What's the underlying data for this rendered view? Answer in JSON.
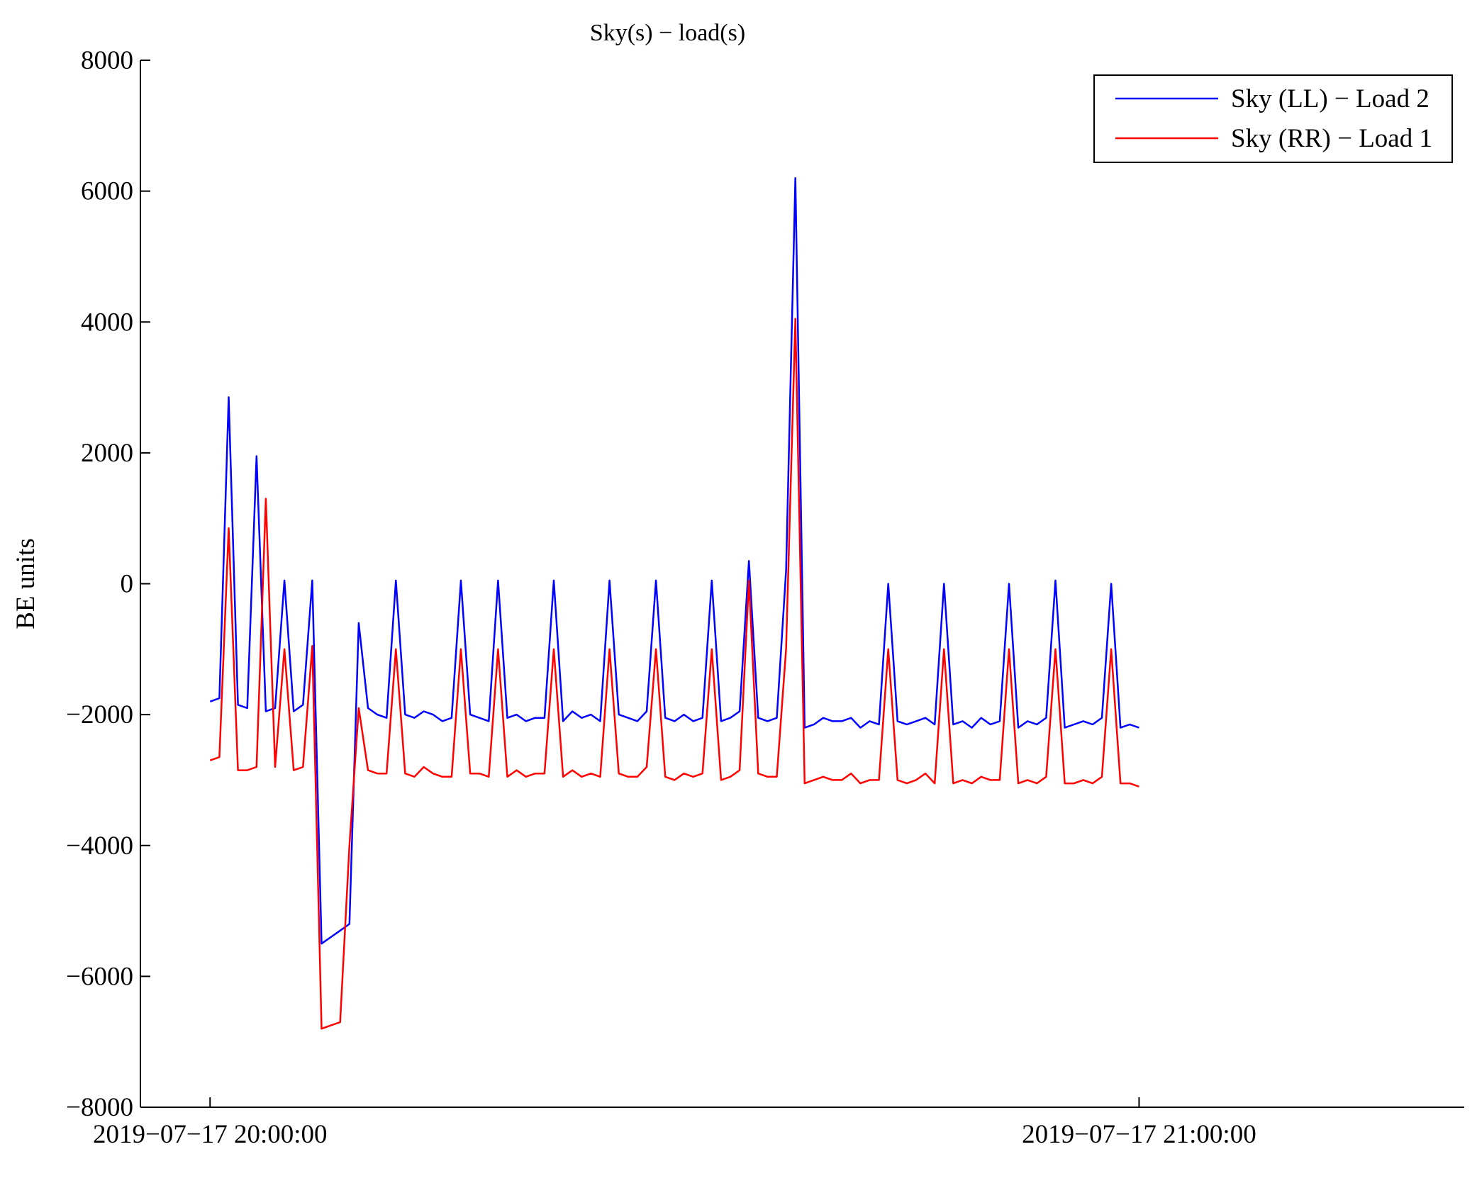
{
  "chart_data": {
    "type": "line",
    "title": "Sky(s) − load(s)",
    "xlabel": "",
    "ylabel": "BE units",
    "ylim": [
      -8000,
      8000
    ],
    "xlim": [
      "2019-07-17 19:55:30",
      "2019-07-17 21:21:00"
    ],
    "yticks": [
      "8000",
      "6000",
      "4000",
      "2000",
      "0",
      "−2000",
      "−4000",
      "−6000",
      "−8000"
    ],
    "yticks_values": [
      8000,
      6000,
      4000,
      2000,
      0,
      -2000,
      -4000,
      -6000,
      -8000
    ],
    "xticks": [
      "2019−07−17 20:00:00",
      "2019−07−17 21:00:00"
    ],
    "xticks_times": [
      "2019-07-17 20:00:00",
      "2019-07-17 21:00:00"
    ],
    "grid": false,
    "legend_position": "top-right",
    "series": [
      {
        "name": "Sky (LL) − Load 2",
        "color": "#0000ff",
        "x": [
          "2019-07-17 20:00:00",
          "2019-07-17 20:00:36",
          "2019-07-17 20:01:12",
          "2019-07-17 20:01:48",
          "2019-07-17 20:02:24",
          "2019-07-17 20:03:00",
          "2019-07-17 20:03:36",
          "2019-07-17 20:04:12",
          "2019-07-17 20:04:48",
          "2019-07-17 20:05:24",
          "2019-07-17 20:06:00",
          "2019-07-17 20:06:36",
          "2019-07-17 20:07:12",
          "2019-07-17 20:07:48",
          "2019-07-17 20:08:24",
          "2019-07-17 20:09:00",
          "2019-07-17 20:09:36",
          "2019-07-17 20:10:12",
          "2019-07-17 20:10:48",
          "2019-07-17 20:11:24",
          "2019-07-17 20:12:00",
          "2019-07-17 20:12:36",
          "2019-07-17 20:13:12",
          "2019-07-17 20:13:48",
          "2019-07-17 20:14:24",
          "2019-07-17 20:15:00",
          "2019-07-17 20:15:36",
          "2019-07-17 20:16:12",
          "2019-07-17 20:16:48",
          "2019-07-17 20:17:24",
          "2019-07-17 20:18:00",
          "2019-07-17 20:18:36",
          "2019-07-17 20:19:12",
          "2019-07-17 20:19:48",
          "2019-07-17 20:20:24",
          "2019-07-17 20:21:00",
          "2019-07-17 20:21:36",
          "2019-07-17 20:22:12",
          "2019-07-17 20:22:48",
          "2019-07-17 20:23:24",
          "2019-07-17 20:24:00",
          "2019-07-17 20:24:36",
          "2019-07-17 20:25:12",
          "2019-07-17 20:25:48",
          "2019-07-17 20:26:24",
          "2019-07-17 20:27:00",
          "2019-07-17 20:27:36",
          "2019-07-17 20:28:12",
          "2019-07-17 20:28:48",
          "2019-07-17 20:29:24",
          "2019-07-17 20:30:00",
          "2019-07-17 20:30:36",
          "2019-07-17 20:31:12",
          "2019-07-17 20:31:48",
          "2019-07-17 20:32:24",
          "2019-07-17 20:33:00",
          "2019-07-17 20:33:36",
          "2019-07-17 20:34:12",
          "2019-07-17 20:34:48",
          "2019-07-17 20:35:24",
          "2019-07-17 20:36:00",
          "2019-07-17 20:36:36",
          "2019-07-17 20:37:12",
          "2019-07-17 20:37:48",
          "2019-07-17 20:38:24",
          "2019-07-17 20:39:00",
          "2019-07-17 20:39:36",
          "2019-07-17 20:40:12",
          "2019-07-17 20:40:48",
          "2019-07-17 20:41:24",
          "2019-07-17 20:42:00",
          "2019-07-17 20:42:36",
          "2019-07-17 20:43:12",
          "2019-07-17 20:43:48",
          "2019-07-17 20:44:24",
          "2019-07-17 20:45:00",
          "2019-07-17 20:45:36",
          "2019-07-17 20:46:12",
          "2019-07-17 20:46:48",
          "2019-07-17 20:47:24",
          "2019-07-17 20:48:00",
          "2019-07-17 20:48:36",
          "2019-07-17 20:49:12",
          "2019-07-17 20:49:48",
          "2019-07-17 20:50:24",
          "2019-07-17 20:51:00",
          "2019-07-17 20:51:36",
          "2019-07-17 20:52:12",
          "2019-07-17 20:52:48",
          "2019-07-17 20:53:24",
          "2019-07-17 20:54:00",
          "2019-07-17 20:54:36",
          "2019-07-17 20:55:12",
          "2019-07-17 20:55:48",
          "2019-07-17 20:56:24",
          "2019-07-17 20:57:00",
          "2019-07-17 20:57:36",
          "2019-07-17 20:58:12",
          "2019-07-17 20:58:48",
          "2019-07-17 20:59:24",
          "2019-07-17 21:00:00"
        ],
        "y": [
          -1800,
          -1750,
          2850,
          -1850,
          -1900,
          1950,
          -1950,
          -1900,
          50,
          -1950,
          -1850,
          50,
          -5500,
          -5400,
          -5300,
          -5200,
          -600,
          -1900,
          -2000,
          -2050,
          50,
          -2000,
          -2050,
          -1950,
          -2000,
          -2100,
          -2050,
          50,
          -2000,
          -2050,
          -2100,
          50,
          -2050,
          -2000,
          -2100,
          -2050,
          -2050,
          50,
          -2100,
          -1950,
          -2050,
          -2000,
          -2100,
          50,
          -2000,
          -2050,
          -2100,
          -1950,
          50,
          -2050,
          -2100,
          -2000,
          -2100,
          -2050,
          50,
          -2100,
          -2050,
          -1950,
          350,
          -2050,
          -2100,
          -2050,
          200,
          6200,
          -2200,
          -2150,
          -2050,
          -2100,
          -2100,
          -2050,
          -2200,
          -2100,
          -2150,
          0,
          -2100,
          -2150,
          -2100,
          -2050,
          -2150,
          0,
          -2150,
          -2100,
          -2200,
          -2050,
          -2150,
          -2100,
          0,
          -2200,
          -2100,
          -2150,
          -2050,
          50,
          -2200,
          -2150,
          -2100,
          -2150,
          -2050,
          0,
          -2200,
          -2150,
          -2200
        ]
      },
      {
        "name": "Sky (RR) − Load 1",
        "color": "#ff0000",
        "x": [
          "2019-07-17 20:00:00",
          "2019-07-17 20:00:36",
          "2019-07-17 20:01:12",
          "2019-07-17 20:01:48",
          "2019-07-17 20:02:24",
          "2019-07-17 20:03:00",
          "2019-07-17 20:03:36",
          "2019-07-17 20:04:12",
          "2019-07-17 20:04:48",
          "2019-07-17 20:05:24",
          "2019-07-17 20:06:00",
          "2019-07-17 20:06:36",
          "2019-07-17 20:07:12",
          "2019-07-17 20:07:48",
          "2019-07-17 20:08:24",
          "2019-07-17 20:09:00",
          "2019-07-17 20:09:36",
          "2019-07-17 20:10:12",
          "2019-07-17 20:10:48",
          "2019-07-17 20:11:24",
          "2019-07-17 20:12:00",
          "2019-07-17 20:12:36",
          "2019-07-17 20:13:12",
          "2019-07-17 20:13:48",
          "2019-07-17 20:14:24",
          "2019-07-17 20:15:00",
          "2019-07-17 20:15:36",
          "2019-07-17 20:16:12",
          "2019-07-17 20:16:48",
          "2019-07-17 20:17:24",
          "2019-07-17 20:18:00",
          "2019-07-17 20:18:36",
          "2019-07-17 20:19:12",
          "2019-07-17 20:19:48",
          "2019-07-17 20:20:24",
          "2019-07-17 20:21:00",
          "2019-07-17 20:21:36",
          "2019-07-17 20:22:12",
          "2019-07-17 20:22:48",
          "2019-07-17 20:23:24",
          "2019-07-17 20:24:00",
          "2019-07-17 20:24:36",
          "2019-07-17 20:25:12",
          "2019-07-17 20:25:48",
          "2019-07-17 20:26:24",
          "2019-07-17 20:27:00",
          "2019-07-17 20:27:36",
          "2019-07-17 20:28:12",
          "2019-07-17 20:28:48",
          "2019-07-17 20:29:24",
          "2019-07-17 20:30:00",
          "2019-07-17 20:30:36",
          "2019-07-17 20:31:12",
          "2019-07-17 20:31:48",
          "2019-07-17 20:32:24",
          "2019-07-17 20:33:00",
          "2019-07-17 20:33:36",
          "2019-07-17 20:34:12",
          "2019-07-17 20:34:48",
          "2019-07-17 20:35:24",
          "2019-07-17 20:36:00",
          "2019-07-17 20:36:36",
          "2019-07-17 20:37:12",
          "2019-07-17 20:37:48",
          "2019-07-17 20:38:24",
          "2019-07-17 20:39:00",
          "2019-07-17 20:39:36",
          "2019-07-17 20:40:12",
          "2019-07-17 20:40:48",
          "2019-07-17 20:41:24",
          "2019-07-17 20:42:00",
          "2019-07-17 20:42:36",
          "2019-07-17 20:43:12",
          "2019-07-17 20:43:48",
          "2019-07-17 20:44:24",
          "2019-07-17 20:45:00",
          "2019-07-17 20:45:36",
          "2019-07-17 20:46:12",
          "2019-07-17 20:46:48",
          "2019-07-17 20:47:24",
          "2019-07-17 20:48:00",
          "2019-07-17 20:48:36",
          "2019-07-17 20:49:12",
          "2019-07-17 20:49:48",
          "2019-07-17 20:50:24",
          "2019-07-17 20:51:00",
          "2019-07-17 20:51:36",
          "2019-07-17 20:52:12",
          "2019-07-17 20:52:48",
          "2019-07-17 20:53:24",
          "2019-07-17 20:54:00",
          "2019-07-17 20:54:36",
          "2019-07-17 20:55:12",
          "2019-07-17 20:55:48",
          "2019-07-17 20:56:24",
          "2019-07-17 20:57:00",
          "2019-07-17 20:57:36",
          "2019-07-17 20:58:12",
          "2019-07-17 20:58:48",
          "2019-07-17 20:59:24",
          "2019-07-17 21:00:00"
        ],
        "y": [
          -2700,
          -2650,
          850,
          -2850,
          -2850,
          -2800,
          1300,
          -2800,
          -1000,
          -2850,
          -2800,
          -950,
          -6800,
          -6750,
          -6700,
          -4000,
          -1900,
          -2850,
          -2900,
          -2900,
          -1000,
          -2900,
          -2950,
          -2800,
          -2900,
          -2950,
          -2950,
          -1000,
          -2900,
          -2900,
          -2950,
          -1000,
          -2950,
          -2850,
          -2950,
          -2900,
          -2900,
          -1000,
          -2950,
          -2850,
          -2950,
          -2900,
          -2950,
          -1000,
          -2900,
          -2950,
          -2950,
          -2800,
          -1000,
          -2950,
          -3000,
          -2900,
          -2950,
          -2900,
          -1000,
          -3000,
          -2950,
          -2850,
          50,
          -2900,
          -2950,
          -2950,
          -1000,
          4050,
          -3050,
          -3000,
          -2950,
          -3000,
          -3000,
          -2900,
          -3050,
          -3000,
          -3000,
          -1000,
          -3000,
          -3050,
          -3000,
          -2900,
          -3050,
          -1000,
          -3050,
          -3000,
          -3050,
          -2950,
          -3000,
          -3000,
          -1000,
          -3050,
          -3000,
          -3050,
          -2950,
          -1000,
          -3050,
          -3050,
          -3000,
          -3050,
          -2950,
          -1000,
          -3050,
          -3050,
          -3100
        ]
      }
    ]
  }
}
